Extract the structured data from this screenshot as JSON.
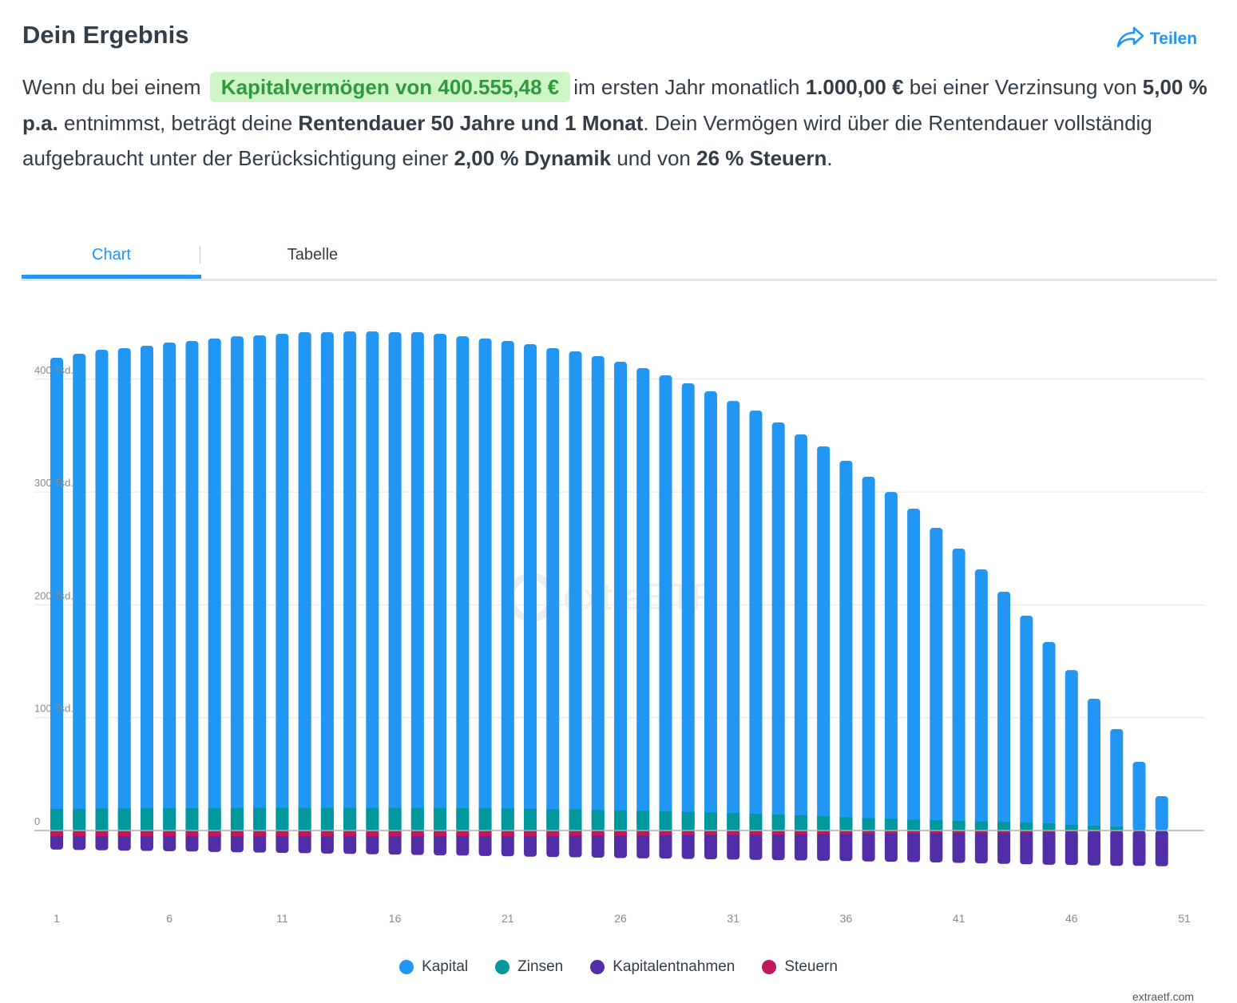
{
  "header": {
    "title": "Dein Ergebnis",
    "share_label": "Teilen",
    "share_icon": "share-arrow-icon"
  },
  "summary": {
    "p1": "Wenn du bei einem",
    "highlight": "Kapitalvermögen von 400.555,48 €",
    "p2": "im ersten Jahr monatlich ",
    "withdrawal": "1.000,00 €",
    "p3": " bei einer Verzinsung von ",
    "rate": "5,00 % p.a.",
    "p4": " entnimmst, beträgt deine ",
    "duration": "Rentendauer 50 Jahre und 1 Monat",
    "p5": ". Dein Vermögen wird über die Rentendauer vollständig aufgebraucht unter der Berücksichtigung einer ",
    "dynamic": "2,00 % Dynamik",
    "p6": " und von ",
    "tax": "26 % Steuern",
    "p7": "."
  },
  "tabs": [
    {
      "label": "Chart",
      "active": true
    },
    {
      "label": "Tabelle",
      "active": false
    }
  ],
  "watermark": "extraETF",
  "credit": "extraetf.com",
  "colors": {
    "kapital": "#2196f3",
    "zinsen": "#00979d",
    "kapitalentnahmen": "#512da8",
    "steuern": "#c2185b",
    "accent": "#2196f3"
  },
  "chart_data": {
    "type": "bar",
    "stacked": true,
    "unit": "Tsd €",
    "x": [
      1,
      2,
      3,
      4,
      5,
      6,
      7,
      8,
      9,
      10,
      11,
      12,
      13,
      14,
      15,
      16,
      17,
      18,
      19,
      20,
      21,
      22,
      23,
      24,
      25,
      26,
      27,
      28,
      29,
      30,
      31,
      32,
      33,
      34,
      35,
      36,
      37,
      38,
      39,
      40,
      41,
      42,
      43,
      44,
      45,
      46,
      47,
      48,
      49,
      50
    ],
    "x_ticks": [
      "1",
      "6",
      "11",
      "16",
      "21",
      "26",
      "31",
      "36",
      "41",
      "46",
      "51"
    ],
    "y_ticks": [
      {
        "value": 0,
        "label": "0"
      },
      {
        "value": 100,
        "label": "100 Tsd."
      },
      {
        "value": 200,
        "label": "200 Tsd."
      },
      {
        "value": 300,
        "label": "300 Tsd."
      },
      {
        "value": 400,
        "label": "400 Tsd."
      }
    ],
    "ylim": [
      -40,
      445
    ],
    "grid": true,
    "legend_position": "bottom",
    "series": [
      {
        "name": "Kapital",
        "key": "kapital",
        "values": [
          400,
          403.3,
          406.6,
          408,
          410,
          412.7,
          414,
          416.1,
          418,
          418.8,
          420.1,
          421.5,
          421.5,
          422.2,
          422.2,
          421.6,
          421.6,
          420.3,
          418.2,
          416.4,
          414.4,
          411.8,
          408.6,
          406,
          402.1,
          397.5,
          392.3,
          386.4,
          379.8,
          373.2,
          365.3,
          357.4,
          347.5,
          337.6,
          327.7,
          315.9,
          302.5,
          289.7,
          275.6,
          259.2,
          241.3,
          223.4,
          204.1,
          183.4,
          160.6,
          137.2,
          112.6,
          86.6,
          59.9,
          30.4
        ]
      },
      {
        "name": "Zinsen",
        "key": "zinsen",
        "values": [
          19,
          19.2,
          19.4,
          19.5,
          19.6,
          19.7,
          19.8,
          19.9,
          20,
          20,
          20.1,
          20.1,
          20.1,
          20.1,
          20.1,
          20,
          20,
          19.9,
          19.8,
          19.6,
          19.4,
          19.2,
          18.9,
          18.6,
          18.3,
          17.9,
          17.5,
          17,
          16.5,
          16,
          15.4,
          14.8,
          14.1,
          13.4,
          12.7,
          11.8,
          11,
          10.3,
          9.6,
          9,
          8.5,
          8,
          7.5,
          7,
          6.4,
          5,
          4.2,
          3.3,
          1,
          0
        ]
      },
      {
        "name": "Kapitalentnahmen",
        "key": "kapitalentnahmen",
        "values": [
          -12,
          -12.24,
          -12.48,
          -12.73,
          -12.99,
          -13.25,
          -13.51,
          -13.78,
          -14.06,
          -14.34,
          -14.63,
          -14.92,
          -15.22,
          -15.52,
          -15.83,
          -16.15,
          -16.47,
          -16.8,
          -17.14,
          -17.48,
          -17.83,
          -18.19,
          -18.55,
          -18.92,
          -19.3,
          -19.69,
          -20.08,
          -20.48,
          -20.89,
          -21.31,
          -21.74,
          -22.17,
          -22.61,
          -23.07,
          -23.53,
          -24,
          -24.48,
          -24.97,
          -25.47,
          -25.98,
          -26.5,
          -27.03,
          -27.57,
          -28.12,
          -28.68,
          -29.26,
          -29.84,
          -30.44,
          -31.05,
          -31.67
        ]
      },
      {
        "name": "Steuern",
        "key": "steuern",
        "values": [
          -4.9,
          -5,
          -5,
          -5.1,
          -5.1,
          -5.1,
          -5.1,
          -5.2,
          -5.2,
          -5.2,
          -5.2,
          -5.2,
          -5.2,
          -5.2,
          -5.2,
          -5.2,
          -5.2,
          -5.2,
          -5.1,
          -5.1,
          -5,
          -5,
          -4.9,
          -4.8,
          -4.8,
          -4.7,
          -4.6,
          -4.4,
          -4.3,
          -4.2,
          -4,
          -3.8,
          -3.7,
          -3.5,
          -3.3,
          -3.1,
          -2.9,
          -2.7,
          -2.5,
          -2.3,
          -2.2,
          -2.1,
          -2,
          -1.8,
          -1.7,
          -1.3,
          -1.1,
          -0.9,
          -0.3,
          0
        ]
      }
    ]
  }
}
